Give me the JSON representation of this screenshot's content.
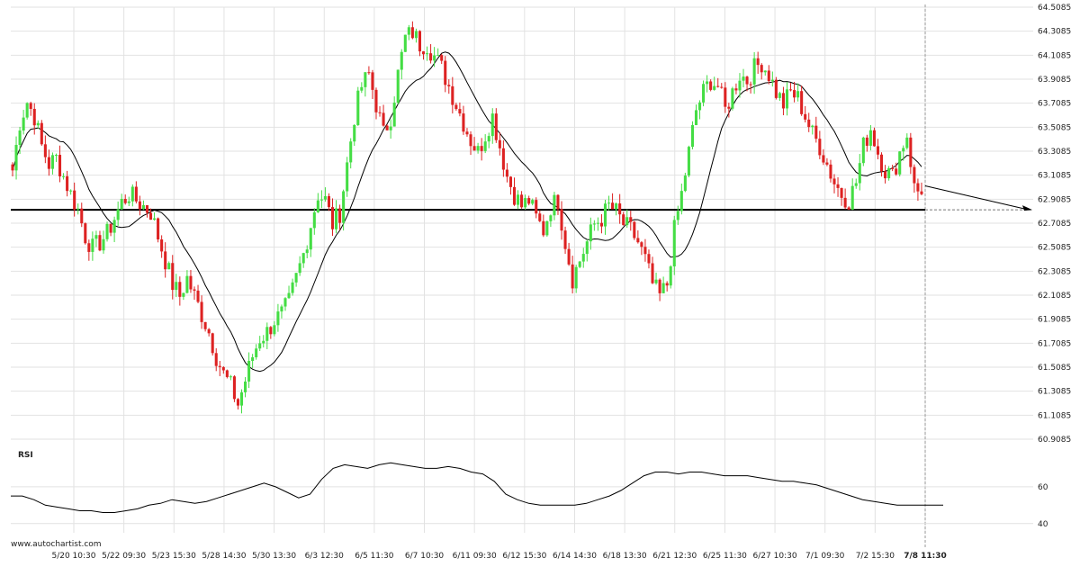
{
  "watermark": "www.autochartist.com",
  "chart_data": [
    {
      "type": "candlestick",
      "y_ticks": [
        "64.5085",
        "64.3085",
        "64.1085",
        "63.9085",
        "63.7085",
        "63.5085",
        "63.3085",
        "63.1085",
        "62.9085",
        "62.7085",
        "62.5085",
        "62.3085",
        "62.1085",
        "61.9085",
        "61.7085",
        "61.5085",
        "61.3085",
        "61.1085",
        "60.9085"
      ],
      "ylim": [
        60.9085,
        64.5085
      ],
      "x_ticks": [
        "5/20 10:30",
        "5/22 09:30",
        "5/23 15:30",
        "5/28 14:30",
        "5/30 13:30",
        "6/3 12:30",
        "6/5 11:30",
        "6/7 10:30",
        "6/11 09:30",
        "6/12 15:30",
        "6/14 14:30",
        "6/18 13:30",
        "6/21 12:30",
        "6/25 11:30",
        "6/27 10:30",
        "7/1 09:30",
        "7/2 15:30",
        "7/8 11:30"
      ],
      "current_x_label": "7/8 11:30",
      "support_level": 62.82,
      "forecast_line": {
        "from": 63.02,
        "to": 62.82
      },
      "colors": {
        "up": "#44dd44",
        "down": "#dd2222",
        "line": "#000000",
        "grid": "#e2e2e2"
      },
      "grid": true,
      "price_path": [
        63.15,
        63.55,
        63.72,
        63.6,
        63.35,
        63.2,
        63.25,
        63.1,
        62.95,
        62.82,
        62.6,
        62.5,
        62.55,
        62.62,
        62.75,
        62.88,
        62.95,
        62.9,
        62.85,
        62.8,
        62.6,
        62.4,
        62.2,
        62.1,
        62.25,
        62.1,
        61.95,
        61.8,
        61.6,
        61.45,
        61.35,
        61.2,
        61.4,
        61.6,
        61.75,
        61.8,
        61.9,
        61.95,
        62.05,
        62.25,
        62.45,
        62.7,
        62.95,
        62.9,
        62.7,
        62.8,
        63.2,
        63.6,
        63.85,
        63.95,
        63.7,
        63.45,
        63.6,
        63.95,
        64.25,
        64.3,
        64.2,
        64.2,
        64.1,
        64.0,
        63.85,
        63.7,
        63.55,
        63.4,
        63.3,
        63.45,
        63.6,
        63.35,
        63.1,
        62.95,
        62.85,
        62.9,
        62.75,
        62.65,
        62.85,
        62.9,
        62.55,
        62.25,
        62.4,
        62.55,
        62.7,
        62.75,
        62.85,
        62.8,
        62.7,
        62.65,
        62.55,
        62.4,
        62.2,
        62.1,
        62.2,
        62.65,
        62.95,
        63.3,
        63.65,
        63.8,
        63.9,
        63.85,
        63.65,
        63.8,
        63.95,
        63.9,
        64.0,
        64.05,
        63.95,
        63.8,
        63.7,
        63.8,
        63.75,
        63.6,
        63.45,
        63.35,
        63.2,
        63.05,
        62.95,
        62.9,
        63.05,
        63.35,
        63.5,
        63.3,
        63.15,
        63.1,
        63.3,
        63.45,
        63.0,
        62.95
      ],
      "rsi": {
        "label": "RSI",
        "y_ticks": [
          "60",
          "40"
        ],
        "ylim": [
          35,
          80
        ],
        "path": [
          55,
          55,
          53,
          50,
          49,
          48,
          47,
          47,
          46,
          46,
          47,
          48,
          50,
          51,
          53,
          52,
          51,
          52,
          54,
          56,
          58,
          60,
          62,
          60,
          57,
          54,
          56,
          64,
          70,
          72,
          71,
          70,
          72,
          73,
          72,
          71,
          70,
          70,
          71,
          70,
          68,
          67,
          63,
          56,
          53,
          51,
          50,
          50,
          50,
          50,
          51,
          53,
          55,
          58,
          62,
          66,
          68,
          68,
          67,
          68,
          68,
          67,
          66,
          66,
          66,
          65,
          64,
          63,
          63,
          62,
          61,
          59,
          57,
          55,
          53,
          52,
          51,
          50,
          50,
          50,
          50,
          50
        ]
      }
    }
  ]
}
